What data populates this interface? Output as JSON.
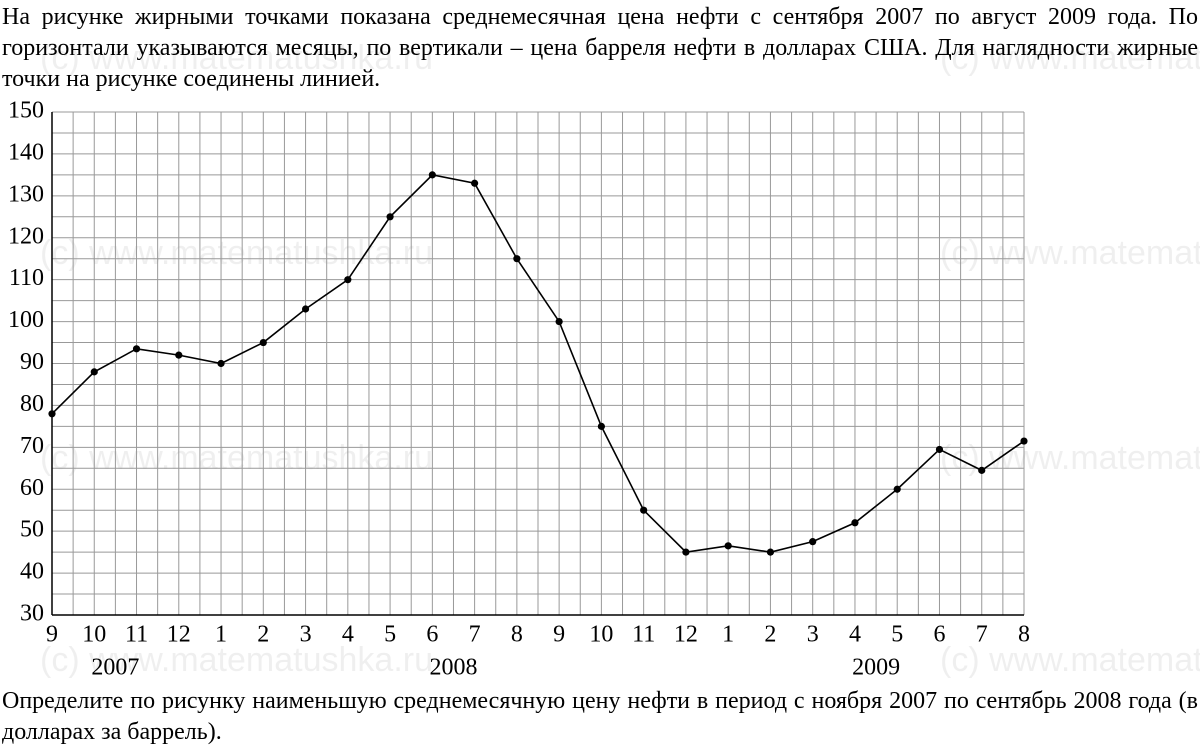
{
  "intro": "На рисунке жирными точками показана среднемесячная цена нефти с сентября 2007 по август 2009 года. По горизонтали указываются месяцы, по вертикали – цена барреля нефти в долларах США. Для наглядности жирные точки на рисунке соединены линией.",
  "question": "Определите по рисунку наименьшую среднемесячную цену нефти в период с ноября 2007 по сентябрь 2008 года (в долларах за баррель).",
  "watermark": "(c) www.matematushka.ru",
  "chart_data": {
    "type": "line",
    "categories": [
      "9",
      "10",
      "11",
      "12",
      "1",
      "2",
      "3",
      "4",
      "5",
      "6",
      "7",
      "8",
      "9",
      "10",
      "11",
      "12",
      "1",
      "2",
      "3",
      "4",
      "5",
      "6",
      "7",
      "8"
    ],
    "years": [
      "2007",
      "2008",
      "2009"
    ],
    "values": [
      78,
      88,
      93.5,
      92,
      90,
      95,
      103,
      110,
      125,
      135,
      133,
      115,
      100,
      75,
      55,
      45,
      46.5,
      45,
      47.5,
      52,
      60,
      69.5,
      64.5,
      71.5
    ],
    "color": "#000000",
    "ylim": [
      30,
      150
    ],
    "yticks": [
      30,
      40,
      50,
      60,
      70,
      80,
      90,
      100,
      110,
      120,
      130,
      140,
      150
    ],
    "grid": true
  }
}
